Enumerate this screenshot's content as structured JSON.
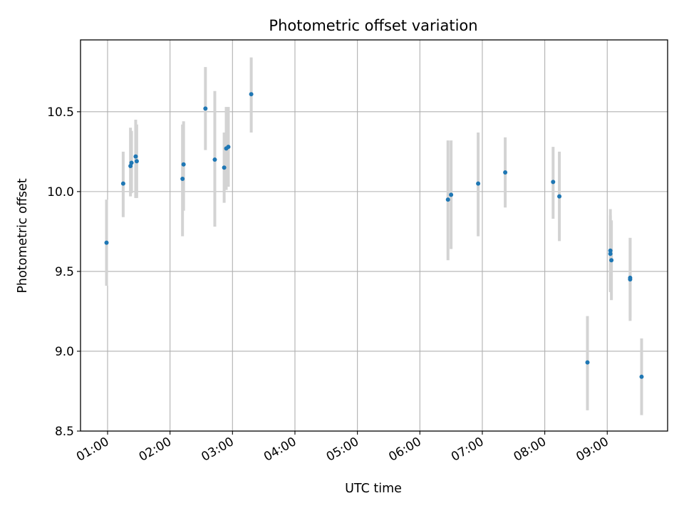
{
  "chart_data": {
    "type": "scatter",
    "title": "Photometric offset variation",
    "xlabel": "UTC time",
    "ylabel": "Photometric offset",
    "xlim": [
      "00:34",
      "09:58"
    ],
    "ylim": [
      8.5,
      10.95
    ],
    "grid": true,
    "x_ticks": [
      "01:00",
      "02:00",
      "03:00",
      "04:00",
      "05:00",
      "06:00",
      "07:00",
      "08:00",
      "09:00"
    ],
    "y_ticks": [
      8.5,
      9.0,
      9.5,
      10.0,
      10.5
    ],
    "y_tick_labels": [
      "8.5",
      "9.0",
      "9.5",
      "10.0",
      "10.5"
    ],
    "point_color": "#1f77b4",
    "errorbar_color": "#d3d3d3",
    "points": [
      {
        "x": "00:59",
        "y": 9.68,
        "low": 9.41,
        "high": 9.95
      },
      {
        "x": "01:15",
        "y": 10.05,
        "low": 9.84,
        "high": 10.25
      },
      {
        "x": "01:22",
        "y": 10.16,
        "low": 9.97,
        "high": 10.4
      },
      {
        "x": "01:23",
        "y": 10.18,
        "low": 9.99,
        "high": 10.38
      },
      {
        "x": "01:27",
        "y": 10.22,
        "low": 9.96,
        "high": 10.45
      },
      {
        "x": "01:28",
        "y": 10.19,
        "low": 9.96,
        "high": 10.42
      },
      {
        "x": "02:12",
        "y": 10.08,
        "low": 9.72,
        "high": 10.42
      },
      {
        "x": "02:13",
        "y": 10.17,
        "low": 9.88,
        "high": 10.44
      },
      {
        "x": "02:34",
        "y": 10.52,
        "low": 10.26,
        "high": 10.78
      },
      {
        "x": "02:43",
        "y": 10.2,
        "low": 9.78,
        "high": 10.63
      },
      {
        "x": "02:52",
        "y": 10.15,
        "low": 9.93,
        "high": 10.37
      },
      {
        "x": "02:54",
        "y": 10.27,
        "low": 10.01,
        "high": 10.53
      },
      {
        "x": "02:56",
        "y": 10.28,
        "low": 10.03,
        "high": 10.53
      },
      {
        "x": "03:18",
        "y": 10.61,
        "low": 10.37,
        "high": 10.84
      },
      {
        "x": "06:27",
        "y": 9.95,
        "low": 9.57,
        "high": 10.32
      },
      {
        "x": "06:30",
        "y": 9.98,
        "low": 9.64,
        "high": 10.32
      },
      {
        "x": "06:56",
        "y": 10.05,
        "low": 9.72,
        "high": 10.37
      },
      {
        "x": "07:22",
        "y": 10.12,
        "low": 9.9,
        "high": 10.34
      },
      {
        "x": "08:08",
        "y": 10.06,
        "low": 9.83,
        "high": 10.28
      },
      {
        "x": "08:14",
        "y": 9.97,
        "low": 9.69,
        "high": 10.25
      },
      {
        "x": "08:41",
        "y": 8.93,
        "low": 8.63,
        "high": 9.22
      },
      {
        "x": "09:03",
        "y": 9.63,
        "low": 9.37,
        "high": 9.89
      },
      {
        "x": "09:03",
        "y": 9.61,
        "low": 9.38,
        "high": 9.85
      },
      {
        "x": "09:04",
        "y": 9.57,
        "low": 9.32,
        "high": 9.82
      },
      {
        "x": "09:22",
        "y": 9.45,
        "low": 9.19,
        "high": 9.71
      },
      {
        "x": "09:22",
        "y": 9.46,
        "low": 9.21,
        "high": 9.71
      },
      {
        "x": "09:33",
        "y": 8.84,
        "low": 8.6,
        "high": 9.08
      }
    ]
  }
}
